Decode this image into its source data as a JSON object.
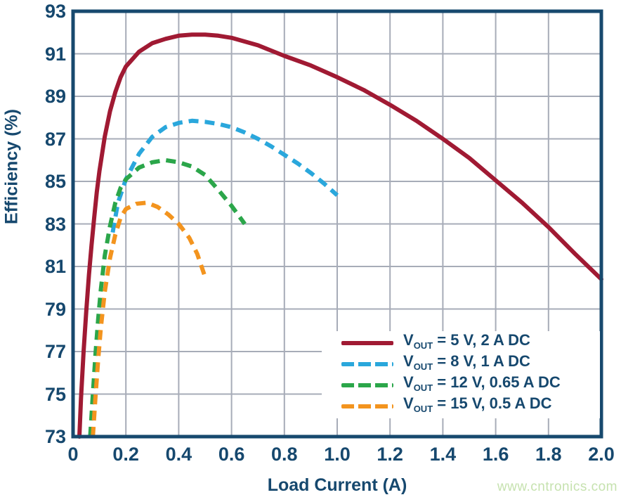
{
  "watermark": {
    "text": "www.cntronics.com",
    "color": "#C6E2AF"
  },
  "colors": {
    "background": "#FFFFFF",
    "axis_text": "#16486E",
    "plot_border": "#17496E",
    "gridline": "#A7ACB8",
    "legend_background": "#FFFFFF"
  },
  "chart_data": {
    "type": "line",
    "title": "",
    "xlabel": "Load Current (A)",
    "ylabel": "Efficiency (%)",
    "xlim": [
      0,
      2.0
    ],
    "ylim": [
      73,
      93
    ],
    "grid": true,
    "legend_position": "inside-lower-right",
    "x_tick_labels": [
      "0",
      "0.2",
      "0.4",
      "0.6",
      "0.8",
      "1.0",
      "1.2",
      "1.4",
      "1.6",
      "1.8",
      "2.0"
    ],
    "x_tick_values": [
      0,
      0.2,
      0.4,
      0.6,
      0.8,
      1.0,
      1.2,
      1.4,
      1.6,
      1.8,
      2.0
    ],
    "y_tick_labels": [
      "93",
      "91",
      "89",
      "87",
      "85",
      "83",
      "81",
      "79",
      "77",
      "75",
      "73"
    ],
    "y_tick_values": [
      93,
      91,
      89,
      87,
      85,
      83,
      81,
      79,
      77,
      75,
      73
    ],
    "series": [
      {
        "id": "vout-5v-2a-dc",
        "label": "VOUT = 5 V, 2 A DC",
        "label_parts": {
          "prefix": "V",
          "sub": "OUT",
          "rest": " = 5 V, 2 A DC"
        },
        "color": "#A01A33",
        "line_style": "solid",
        "points": [
          [
            0.024,
            73
          ],
          [
            0.03,
            74.8
          ],
          [
            0.04,
            77.0
          ],
          [
            0.05,
            78.9
          ],
          [
            0.06,
            80.6
          ],
          [
            0.07,
            82.0
          ],
          [
            0.08,
            83.3
          ],
          [
            0.09,
            84.5
          ],
          [
            0.1,
            85.5
          ],
          [
            0.12,
            87.1
          ],
          [
            0.14,
            88.3
          ],
          [
            0.16,
            89.2
          ],
          [
            0.18,
            89.9
          ],
          [
            0.2,
            90.4
          ],
          [
            0.25,
            91.1
          ],
          [
            0.3,
            91.5
          ],
          [
            0.35,
            91.7
          ],
          [
            0.4,
            91.85
          ],
          [
            0.45,
            91.9
          ],
          [
            0.5,
            91.9
          ],
          [
            0.55,
            91.85
          ],
          [
            0.6,
            91.75
          ],
          [
            0.7,
            91.4
          ],
          [
            0.8,
            90.9
          ],
          [
            0.9,
            90.45
          ],
          [
            1.0,
            89.9
          ],
          [
            1.1,
            89.3
          ],
          [
            1.2,
            88.6
          ],
          [
            1.3,
            87.85
          ],
          [
            1.4,
            87.0
          ],
          [
            1.5,
            86.1
          ],
          [
            1.6,
            85.05
          ],
          [
            1.7,
            84.0
          ],
          [
            1.8,
            82.85
          ],
          [
            1.9,
            81.6
          ],
          [
            2.0,
            80.4
          ]
        ]
      },
      {
        "id": "vout-8v-1a-dc",
        "label": "VOUT = 8 V, 1 A DC",
        "label_parts": {
          "prefix": "V",
          "sub": "OUT",
          "rest": " = 8 V, 1 A DC"
        },
        "color": "#2AA7DC",
        "line_style": "dashed",
        "points": [
          [
            0.15,
            82.6
          ],
          [
            0.17,
            84.0
          ],
          [
            0.2,
            85.1
          ],
          [
            0.25,
            86.3
          ],
          [
            0.3,
            87.1
          ],
          [
            0.35,
            87.55
          ],
          [
            0.4,
            87.75
          ],
          [
            0.45,
            87.85
          ],
          [
            0.5,
            87.8
          ],
          [
            0.55,
            87.7
          ],
          [
            0.6,
            87.55
          ],
          [
            0.65,
            87.3
          ],
          [
            0.7,
            87.0
          ],
          [
            0.75,
            86.65
          ],
          [
            0.8,
            86.25
          ],
          [
            0.85,
            85.85
          ],
          [
            0.9,
            85.4
          ],
          [
            0.95,
            84.9
          ],
          [
            1.0,
            84.35
          ]
        ]
      },
      {
        "id": "vout-12v-065a-dc",
        "label": "VOUT = 12 V, 0.65 A DC",
        "label_parts": {
          "prefix": "V",
          "sub": "OUT",
          "rest": " = 12 V, 0.65 A DC"
        },
        "color": "#2BA64A",
        "line_style": "dashed",
        "points": [
          [
            0.065,
            73
          ],
          [
            0.075,
            75
          ],
          [
            0.085,
            76.9
          ],
          [
            0.095,
            78.5
          ],
          [
            0.105,
            79.9
          ],
          [
            0.12,
            81.5
          ],
          [
            0.14,
            82.9
          ],
          [
            0.16,
            84.0
          ],
          [
            0.18,
            84.7
          ],
          [
            0.2,
            85.1
          ],
          [
            0.25,
            85.65
          ],
          [
            0.3,
            85.9
          ],
          [
            0.35,
            86.0
          ],
          [
            0.4,
            85.9
          ],
          [
            0.45,
            85.7
          ],
          [
            0.5,
            85.3
          ],
          [
            0.55,
            84.6
          ],
          [
            0.6,
            83.85
          ],
          [
            0.65,
            83.0
          ]
        ]
      },
      {
        "id": "vout-15v-05a-dc",
        "label": "VOUT = 15 V, 0.5 A DC",
        "label_parts": {
          "prefix": "V",
          "sub": "OUT",
          "rest": " = 15 V, 0.5 A DC"
        },
        "color": "#F3941E",
        "line_style": "dashed",
        "points": [
          [
            0.075,
            73
          ],
          [
            0.085,
            74.9
          ],
          [
            0.095,
            76.6
          ],
          [
            0.105,
            78.1
          ],
          [
            0.12,
            79.8
          ],
          [
            0.14,
            81.4
          ],
          [
            0.16,
            82.5
          ],
          [
            0.18,
            83.3
          ],
          [
            0.2,
            83.7
          ],
          [
            0.24,
            83.95
          ],
          [
            0.28,
            84.0
          ],
          [
            0.32,
            83.8
          ],
          [
            0.36,
            83.45
          ],
          [
            0.4,
            83.0
          ],
          [
            0.44,
            82.35
          ],
          [
            0.47,
            81.6
          ],
          [
            0.5,
            80.5
          ]
        ]
      }
    ]
  }
}
